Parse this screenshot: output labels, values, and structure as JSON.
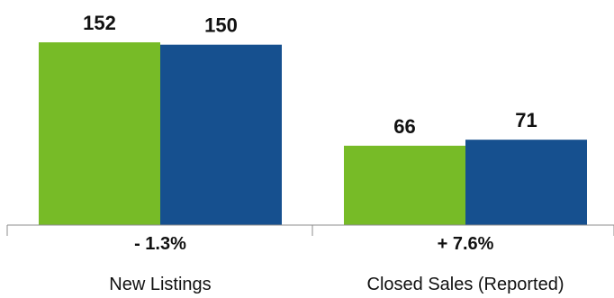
{
  "chart_data": {
    "type": "bar",
    "categories": [
      "New Listings",
      "Closed Sales (Reported)"
    ],
    "change_labels": [
      "- 1.3%",
      "+ 7.6%"
    ],
    "series": [
      {
        "values": [
          152,
          66
        ],
        "color": "#77BB27"
      },
      {
        "values": [
          150,
          71
        ],
        "color": "#16508F"
      }
    ],
    "data_labels": [
      [
        "152",
        "66"
      ],
      [
        "150",
        "71"
      ]
    ],
    "ylim": [
      0,
      152
    ],
    "grid": false,
    "legend": "none",
    "axis_color": "#8C8C8C",
    "label_color": "#111111"
  }
}
